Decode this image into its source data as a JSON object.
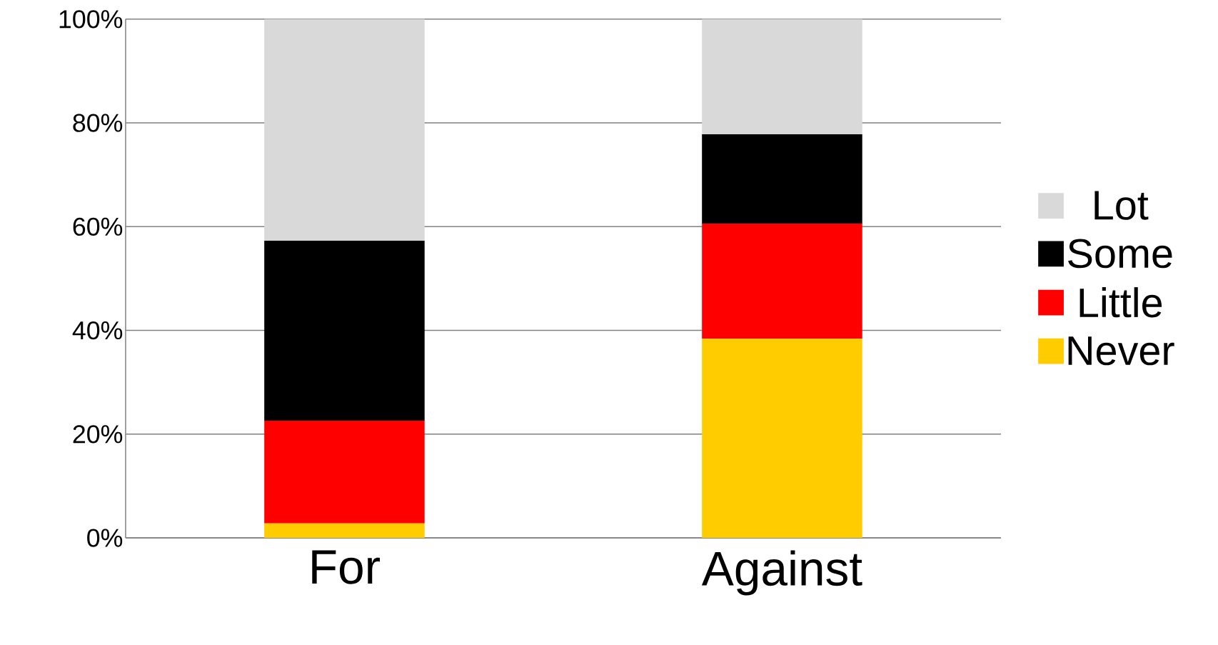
{
  "chart_data": {
    "type": "bar",
    "stacked": true,
    "categories": [
      "For",
      "Against"
    ],
    "series": [
      {
        "name": "Never",
        "color": "#ffcc00",
        "values": [
          2.8,
          38.4
        ]
      },
      {
        "name": "Little",
        "color": "#ff0000",
        "values": [
          19.8,
          22.2
        ]
      },
      {
        "name": "Some",
        "color": "#000000",
        "values": [
          34.7,
          17.2
        ]
      },
      {
        "name": "Lot",
        "color": "#d9d9d9",
        "values": [
          42.7,
          22.2
        ]
      }
    ],
    "ylim": [
      0,
      100
    ],
    "yticks": [
      {
        "value": 0,
        "label": "0%"
      },
      {
        "value": 20,
        "label": "20%"
      },
      {
        "value": 40,
        "label": "40%"
      },
      {
        "value": 60,
        "label": "60%"
      },
      {
        "value": 80,
        "label": "80%"
      },
      {
        "value": 100,
        "label": "100%"
      }
    ],
    "grid": "y",
    "legend": "right"
  }
}
